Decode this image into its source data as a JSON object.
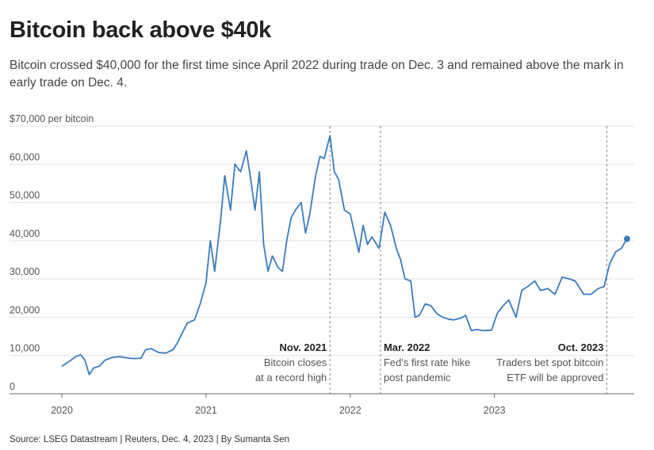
{
  "header": {
    "title": "Bitcoin back above $40k",
    "subtitle": "Bitcoin crossed $40,000 for the first time since April 2022 during trade on Dec. 3 and remained above the mark in early trade on Dec. 4."
  },
  "footer": {
    "source": "Source: LSEG Datastream | Reuters, Dec. 4, 2023 | By Sumanta Sen"
  },
  "colors": {
    "line": "#3a7dbd",
    "grid": "#e2e2e2",
    "annotation": "#888888"
  },
  "chart_data": {
    "type": "line",
    "title": "Bitcoin back above $40k",
    "ylabel": "per bitcoin",
    "ylim": [
      0,
      70000
    ],
    "xlim": [
      2020.0,
      2023.92
    ],
    "grid": true,
    "y_ticks": [
      {
        "value": 0,
        "label": "0"
      },
      {
        "value": 10000,
        "label": "10,000"
      },
      {
        "value": 20000,
        "label": "20,000"
      },
      {
        "value": 30000,
        "label": "30,000"
      },
      {
        "value": 40000,
        "label": "40,000"
      },
      {
        "value": 50000,
        "label": "50,000"
      },
      {
        "value": 60000,
        "label": "60,000"
      },
      {
        "value": 70000,
        "label": "$70,000 per bitcoin"
      }
    ],
    "x_ticks": [
      {
        "value": 2020,
        "label": "2020"
      },
      {
        "value": 2021,
        "label": "2021"
      },
      {
        "value": 2022,
        "label": "2022"
      },
      {
        "value": 2023,
        "label": "2023"
      }
    ],
    "series": [
      {
        "points": [
          [
            2020.0,
            7200
          ],
          [
            2020.05,
            8400
          ],
          [
            2020.1,
            9800
          ],
          [
            2020.13,
            10200
          ],
          [
            2020.16,
            8800
          ],
          [
            2020.19,
            5000
          ],
          [
            2020.22,
            6700
          ],
          [
            2020.26,
            7200
          ],
          [
            2020.3,
            8800
          ],
          [
            2020.35,
            9500
          ],
          [
            2020.4,
            9700
          ],
          [
            2020.45,
            9400
          ],
          [
            2020.5,
            9200
          ],
          [
            2020.55,
            9300
          ],
          [
            2020.58,
            11500
          ],
          [
            2020.62,
            11800
          ],
          [
            2020.67,
            10800
          ],
          [
            2020.72,
            10600
          ],
          [
            2020.77,
            11500
          ],
          [
            2020.8,
            13200
          ],
          [
            2020.83,
            15500
          ],
          [
            2020.87,
            18500
          ],
          [
            2020.92,
            19300
          ],
          [
            2020.96,
            23500
          ],
          [
            2021.0,
            29000
          ],
          [
            2021.03,
            40000
          ],
          [
            2021.06,
            32000
          ],
          [
            2021.1,
            45000
          ],
          [
            2021.13,
            57000
          ],
          [
            2021.17,
            48000
          ],
          [
            2021.2,
            60000
          ],
          [
            2021.24,
            58000
          ],
          [
            2021.28,
            63500
          ],
          [
            2021.31,
            56000
          ],
          [
            2021.34,
            48000
          ],
          [
            2021.37,
            58000
          ],
          [
            2021.4,
            39000
          ],
          [
            2021.43,
            32000
          ],
          [
            2021.46,
            36000
          ],
          [
            2021.5,
            33000
          ],
          [
            2021.53,
            32000
          ],
          [
            2021.56,
            40000
          ],
          [
            2021.59,
            46000
          ],
          [
            2021.62,
            48000
          ],
          [
            2021.66,
            50000
          ],
          [
            2021.69,
            42000
          ],
          [
            2021.72,
            47000
          ],
          [
            2021.76,
            57000
          ],
          [
            2021.79,
            62000
          ],
          [
            2021.82,
            61500
          ],
          [
            2021.86,
            67500
          ],
          [
            2021.89,
            58000
          ],
          [
            2021.92,
            56000
          ],
          [
            2021.96,
            48000
          ],
          [
            2022.0,
            47000
          ],
          [
            2022.03,
            42000
          ],
          [
            2022.06,
            37000
          ],
          [
            2022.09,
            44000
          ],
          [
            2022.12,
            39000
          ],
          [
            2022.15,
            41000
          ],
          [
            2022.2,
            38000
          ],
          [
            2022.24,
            47500
          ],
          [
            2022.28,
            44000
          ],
          [
            2022.32,
            38000
          ],
          [
            2022.35,
            35000
          ],
          [
            2022.38,
            30000
          ],
          [
            2022.42,
            29500
          ],
          [
            2022.45,
            20000
          ],
          [
            2022.48,
            20500
          ],
          [
            2022.52,
            23500
          ],
          [
            2022.56,
            23000
          ],
          [
            2022.6,
            21000
          ],
          [
            2022.64,
            20000
          ],
          [
            2022.68,
            19500
          ],
          [
            2022.72,
            19300
          ],
          [
            2022.77,
            19800
          ],
          [
            2022.8,
            20500
          ],
          [
            2022.84,
            16500
          ],
          [
            2022.88,
            16800
          ],
          [
            2022.92,
            16500
          ],
          [
            2022.98,
            16600
          ],
          [
            2023.02,
            21000
          ],
          [
            2023.06,
            23000
          ],
          [
            2023.1,
            24500
          ],
          [
            2023.15,
            20000
          ],
          [
            2023.19,
            27000
          ],
          [
            2023.23,
            28000
          ],
          [
            2023.28,
            29500
          ],
          [
            2023.32,
            27000
          ],
          [
            2023.37,
            27500
          ],
          [
            2023.42,
            26000
          ],
          [
            2023.47,
            30500
          ],
          [
            2023.52,
            30000
          ],
          [
            2023.56,
            29500
          ],
          [
            2023.62,
            26000
          ],
          [
            2023.67,
            26000
          ],
          [
            2023.72,
            27500
          ],
          [
            2023.76,
            28000
          ],
          [
            2023.8,
            34000
          ],
          [
            2023.84,
            37000
          ],
          [
            2023.88,
            38000
          ],
          [
            2023.92,
            40500
          ]
        ]
      }
    ],
    "annotations": [
      {
        "x": 2021.86,
        "title": "Nov. 2021",
        "lines": [
          "Bitcoin closes",
          "at a record high"
        ],
        "align": "end"
      },
      {
        "x": 2022.21,
        "title": "Mar. 2022",
        "lines": [
          "Fed's first rate hike",
          "post pandemic"
        ],
        "align": "start"
      },
      {
        "x": 2023.78,
        "title": "Oct. 2023",
        "lines": [
          "Traders bet spot bitcoin",
          "ETF will be approved"
        ],
        "align": "end"
      }
    ]
  }
}
